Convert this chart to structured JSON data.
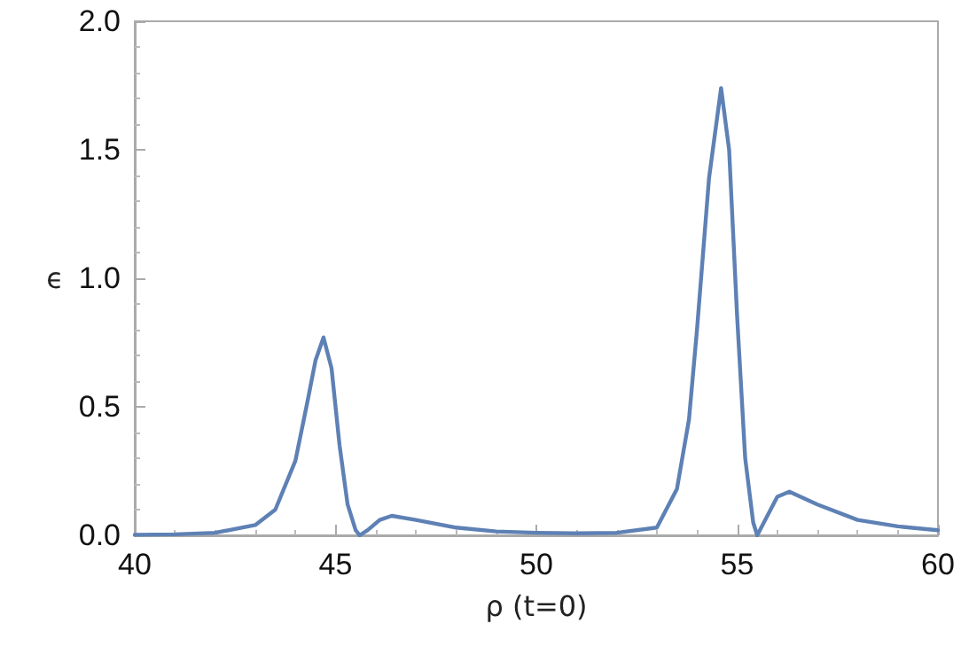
{
  "chart_data": {
    "type": "line",
    "xlabel": "ρ (t=0)",
    "ylabel": "ϵ",
    "xlim": [
      40,
      60
    ],
    "xticks": [
      40,
      45,
      50,
      55,
      60
    ],
    "ylim": [
      0,
      2
    ],
    "yticks": [
      {
        "value": 0,
        "label": "0.0"
      },
      {
        "value": 0.5,
        "label": "0.5"
      },
      {
        "value": 1,
        "label": "1.0"
      },
      {
        "value": 1.5,
        "label": "1.5"
      },
      {
        "value": 2,
        "label": "2.0"
      }
    ],
    "grid": false,
    "marker": "none",
    "line_style": "solid",
    "series": [
      {
        "color": "#5e81b5",
        "x": [
          40,
          41,
          42,
          43,
          43.5,
          44,
          44.3,
          44.5,
          44.7,
          44.9,
          45.1,
          45.3,
          45.5,
          45.6,
          45.8,
          46.1,
          46.4,
          47,
          48,
          49,
          50,
          51,
          52,
          53,
          53.5,
          53.8,
          54,
          54.3,
          54.6,
          54.8,
          55,
          55.2,
          55.4,
          55.5,
          55.7,
          56,
          56.3,
          57,
          58,
          59,
          60
        ],
        "values": [
          0.002,
          0.004,
          0.01,
          0.04,
          0.1,
          0.29,
          0.52,
          0.68,
          0.77,
          0.65,
          0.35,
          0.12,
          0.02,
          0,
          0.02,
          0.06,
          0.076,
          0.06,
          0.03,
          0.015,
          0.01,
          0.008,
          0.01,
          0.03,
          0.18,
          0.45,
          0.8,
          1.39,
          1.74,
          1.5,
          0.85,
          0.3,
          0.05,
          0,
          0.06,
          0.15,
          0.17,
          0.12,
          0.06,
          0.035,
          0.02
        ]
      }
    ]
  }
}
